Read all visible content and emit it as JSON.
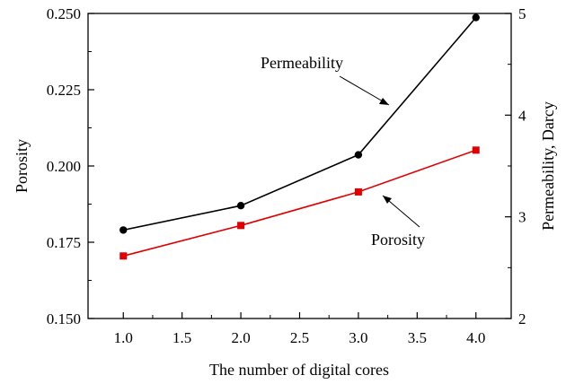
{
  "chart_data": {
    "type": "line",
    "title": "",
    "xlabel": "The number of digital cores",
    "ylabel_left": "Porosity",
    "ylabel_right": "Permeability, Darcy",
    "xlim": [
      0.7,
      4.3
    ],
    "ylim_left": [
      0.15,
      0.25
    ],
    "ylim_right": [
      2,
      5
    ],
    "x_ticks": [
      "1.0",
      "1.5",
      "2.0",
      "2.5",
      "3.0",
      "3.5",
      "4.0"
    ],
    "y_left_ticks": [
      "0.150",
      "0.175",
      "0.200",
      "0.225",
      "0.250"
    ],
    "y_right_ticks": [
      "2",
      "3",
      "4",
      "5"
    ],
    "grid": false,
    "legend": "none",
    "series": [
      {
        "name": "Permeability",
        "axis": "right",
        "color": "#000000",
        "marker": "circle",
        "x": [
          1.0,
          2.0,
          3.0,
          4.0
        ],
        "values": [
          2.87,
          3.11,
          3.61,
          4.96
        ]
      },
      {
        "name": "Porosity",
        "axis": "left",
        "color": "#e00000",
        "marker": "square",
        "x": [
          1.0,
          2.0,
          3.0,
          4.0
        ],
        "values": [
          0.1705,
          0.1805,
          0.1915,
          0.2052
        ]
      }
    ],
    "annotations": [
      "Permeability",
      "Porosity"
    ]
  }
}
